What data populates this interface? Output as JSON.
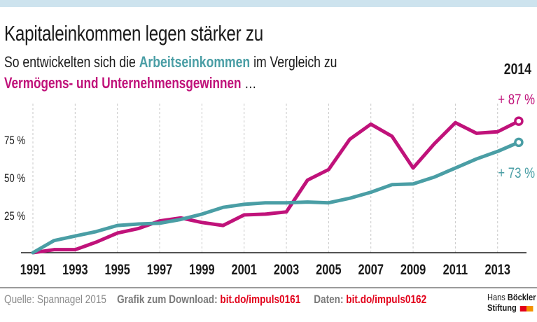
{
  "header": {
    "title": "Kapitaleinkommen legen stärker zu",
    "subtitle_pre": "So entwickelten sich die ",
    "subtitle_highlight": "Arbeitseinkommen",
    "subtitle_post": " im Vergleich zu",
    "subtitle_line2": "Vermögens- und Unternehmensgewinnen",
    "subtitle_ellipsis": " …",
    "end_year": "2014"
  },
  "colors": {
    "capital": "#c0127a",
    "labor": "#4a9ea5",
    "link": "#e2001a"
  },
  "chart_data": {
    "type": "line",
    "title": "Kapitaleinkommen legen stärker zu",
    "xlabel": "",
    "ylabel": "",
    "x": [
      1991,
      1992,
      1993,
      1994,
      1995,
      1996,
      1997,
      1998,
      1999,
      2000,
      2001,
      2002,
      2003,
      2004,
      2005,
      2006,
      2007,
      2008,
      2009,
      2010,
      2011,
      2012,
      2013,
      2014
    ],
    "xtick_labels": [
      "1991",
      "1993",
      "1995",
      "1997",
      "1999",
      "2001",
      "2003",
      "2005",
      "2007",
      "2009",
      "2011",
      "2013"
    ],
    "ytick_labels": [
      "25 %",
      "50 %",
      "75 %"
    ],
    "yticks": [
      25,
      50,
      75
    ],
    "ylim": [
      0,
      95
    ],
    "xlim": [
      1991,
      2015
    ],
    "grid": "vertical dashed at labeled years",
    "series": [
      {
        "name": "Vermögens- und Unternehmensgewinne",
        "color": "#c0127a",
        "values": [
          0,
          2,
          2,
          7,
          13,
          16,
          21,
          23,
          20,
          18,
          25,
          25.5,
          27,
          48,
          55,
          75,
          85,
          77,
          56,
          72,
          86,
          79,
          80,
          87
        ],
        "end_label": "+ 87 %"
      },
      {
        "name": "Arbeitseinkommen",
        "color": "#4a9ea5",
        "values": [
          0,
          8,
          11,
          14,
          18,
          19,
          19.5,
          22,
          25.5,
          30,
          32,
          33,
          33,
          33.5,
          33,
          36,
          40,
          45,
          45.5,
          50,
          56,
          62,
          67,
          73
        ],
        "end_label": "+ 73 %"
      }
    ]
  },
  "footer": {
    "source": "Quelle: Spannagel 2015",
    "download_label": "Grafik zum Download: ",
    "download_link": "bit.do/impuls0161",
    "data_label": "Daten: ",
    "data_link": "bit.do/impuls0162",
    "logo_line1_a": "Hans ",
    "logo_line1_b": "Böckler",
    "logo_line2": "Stiftung"
  }
}
